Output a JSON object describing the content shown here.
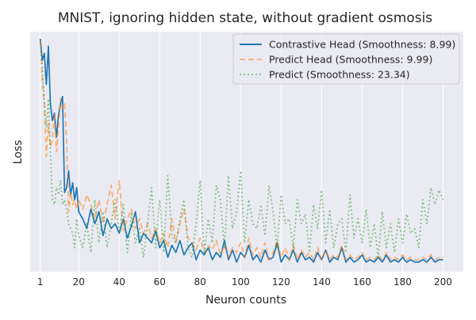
{
  "colors": {
    "background": "#ffffff",
    "plot_bg": "#eaeaf2",
    "grid": "#ffffff",
    "text": "#262626",
    "contrastive": "#1f77b4",
    "predict_head": "#ff7f0e",
    "predict": "#2ca02c"
  },
  "chart_data": {
    "type": "line",
    "title": "MNIST, ignoring hidden state, without gradient osmosis",
    "xlabel": "Neuron counts",
    "ylabel": "Loss",
    "xlim": [
      -4,
      210
    ],
    "ylim": [
      0,
      1.0
    ],
    "x_ticks": [
      1,
      20,
      40,
      60,
      80,
      100,
      120,
      140,
      160,
      180,
      200
    ],
    "y_ticks_shown": false,
    "grid": true,
    "legend_position": "top-right",
    "series": [
      {
        "name": "Contrastive Head (Smoothness: 8.99)",
        "color": "#1f77b4",
        "style": "solid",
        "opacity": 1.0,
        "x": [
          1,
          2,
          3,
          4,
          5,
          6,
          7,
          8,
          9,
          10,
          11,
          12,
          13,
          14,
          15,
          16,
          17,
          18,
          19,
          20,
          22,
          24,
          26,
          28,
          30,
          32,
          34,
          36,
          38,
          40,
          42,
          44,
          46,
          48,
          50,
          52,
          54,
          56,
          58,
          60,
          62,
          64,
          66,
          68,
          70,
          72,
          74,
          76,
          78,
          80,
          82,
          84,
          86,
          88,
          90,
          92,
          94,
          96,
          98,
          100,
          102,
          104,
          106,
          108,
          110,
          112,
          114,
          116,
          118,
          120,
          122,
          124,
          126,
          128,
          130,
          132,
          134,
          136,
          138,
          140,
          142,
          144,
          146,
          148,
          150,
          152,
          154,
          156,
          158,
          160,
          162,
          164,
          166,
          168,
          170,
          172,
          174,
          176,
          178,
          180,
          182,
          184,
          186,
          188,
          190,
          192,
          194,
          196,
          198,
          200
        ],
        "y": [
          0.97,
          0.88,
          0.91,
          0.78,
          0.94,
          0.7,
          0.63,
          0.66,
          0.56,
          0.65,
          0.7,
          0.73,
          0.33,
          0.35,
          0.42,
          0.32,
          0.37,
          0.3,
          0.35,
          0.25,
          0.22,
          0.18,
          0.26,
          0.2,
          0.25,
          0.15,
          0.22,
          0.18,
          0.2,
          0.16,
          0.22,
          0.14,
          0.19,
          0.25,
          0.12,
          0.16,
          0.14,
          0.12,
          0.17,
          0.1,
          0.13,
          0.06,
          0.11,
          0.08,
          0.13,
          0.07,
          0.1,
          0.12,
          0.05,
          0.09,
          0.07,
          0.1,
          0.05,
          0.08,
          0.06,
          0.13,
          0.05,
          0.09,
          0.04,
          0.08,
          0.06,
          0.11,
          0.05,
          0.07,
          0.04,
          0.09,
          0.05,
          0.06,
          0.12,
          0.04,
          0.07,
          0.05,
          0.09,
          0.04,
          0.08,
          0.05,
          0.06,
          0.04,
          0.08,
          0.05,
          0.09,
          0.04,
          0.06,
          0.05,
          0.1,
          0.04,
          0.06,
          0.04,
          0.05,
          0.07,
          0.04,
          0.05,
          0.04,
          0.06,
          0.04,
          0.07,
          0.04,
          0.05,
          0.04,
          0.06,
          0.04,
          0.05,
          0.04,
          0.04,
          0.05,
          0.04,
          0.06,
          0.04,
          0.05,
          0.05
        ]
      },
      {
        "name": "Predict Head (Smoothness: 9.99)",
        "color": "#ff7f0e",
        "style": "dashed",
        "opacity": 0.55,
        "x": [
          1,
          2,
          3,
          4,
          5,
          6,
          7,
          8,
          9,
          10,
          11,
          12,
          13,
          14,
          15,
          16,
          17,
          18,
          19,
          20,
          22,
          24,
          26,
          28,
          30,
          32,
          34,
          36,
          38,
          40,
          42,
          44,
          46,
          48,
          50,
          52,
          54,
          56,
          58,
          60,
          62,
          64,
          66,
          68,
          70,
          72,
          74,
          76,
          78,
          80,
          82,
          84,
          86,
          88,
          90,
          92,
          94,
          96,
          98,
          100,
          102,
          104,
          106,
          108,
          110,
          112,
          114,
          116,
          118,
          120,
          122,
          124,
          126,
          128,
          130,
          132,
          134,
          136,
          138,
          140,
          142,
          144,
          146,
          148,
          150,
          152,
          154,
          156,
          158,
          160,
          162,
          164,
          166,
          168,
          170,
          172,
          174,
          176,
          178,
          180,
          182,
          184,
          186,
          188,
          190,
          192,
          194,
          196,
          198,
          200
        ],
        "y": [
          0.96,
          0.8,
          0.7,
          0.48,
          0.62,
          0.52,
          0.55,
          0.66,
          0.5,
          0.6,
          0.72,
          0.68,
          0.7,
          0.55,
          0.25,
          0.33,
          0.28,
          0.3,
          0.26,
          0.3,
          0.26,
          0.32,
          0.28,
          0.22,
          0.3,
          0.2,
          0.28,
          0.36,
          0.22,
          0.38,
          0.17,
          0.22,
          0.26,
          0.18,
          0.22,
          0.16,
          0.2,
          0.14,
          0.18,
          0.12,
          0.16,
          0.1,
          0.22,
          0.12,
          0.2,
          0.26,
          0.14,
          0.12,
          0.09,
          0.14,
          0.08,
          0.11,
          0.09,
          0.13,
          0.07,
          0.11,
          0.06,
          0.1,
          0.08,
          0.12,
          0.06,
          0.14,
          0.07,
          0.1,
          0.06,
          0.12,
          0.05,
          0.08,
          0.13,
          0.06,
          0.1,
          0.05,
          0.11,
          0.05,
          0.09,
          0.06,
          0.08,
          0.05,
          0.1,
          0.05,
          0.09,
          0.05,
          0.07,
          0.06,
          0.11,
          0.05,
          0.07,
          0.05,
          0.06,
          0.08,
          0.05,
          0.06,
          0.05,
          0.07,
          0.05,
          0.08,
          0.05,
          0.06,
          0.05,
          0.07,
          0.05,
          0.06,
          0.05,
          0.05,
          0.06,
          0.05,
          0.07,
          0.05,
          0.06,
          0.06
        ]
      },
      {
        "name": "Predict (Smoothness: 23.34)",
        "color": "#2ca02c",
        "style": "dotted",
        "opacity": 0.55,
        "x": [
          1,
          2,
          3,
          4,
          5,
          6,
          7,
          8,
          9,
          10,
          11,
          12,
          13,
          14,
          15,
          16,
          17,
          18,
          19,
          20,
          22,
          24,
          26,
          28,
          30,
          32,
          34,
          36,
          38,
          40,
          42,
          44,
          46,
          48,
          50,
          52,
          54,
          56,
          58,
          60,
          62,
          64,
          66,
          68,
          70,
          72,
          74,
          76,
          78,
          80,
          82,
          84,
          86,
          88,
          90,
          92,
          94,
          96,
          98,
          100,
          102,
          104,
          106,
          108,
          110,
          112,
          114,
          116,
          118,
          120,
          122,
          124,
          126,
          128,
          130,
          132,
          134,
          136,
          138,
          140,
          142,
          144,
          146,
          148,
          150,
          152,
          154,
          156,
          158,
          160,
          162,
          164,
          166,
          168,
          170,
          172,
          174,
          176,
          178,
          180,
          182,
          184,
          186,
          188,
          190,
          192,
          194,
          196,
          198,
          200
        ],
        "y": [
          0.97,
          0.85,
          0.7,
          0.6,
          0.72,
          0.5,
          0.3,
          0.28,
          0.35,
          0.32,
          0.38,
          0.28,
          0.3,
          0.26,
          0.2,
          0.18,
          0.16,
          0.1,
          0.22,
          0.15,
          0.1,
          0.2,
          0.08,
          0.3,
          0.12,
          0.25,
          0.1,
          0.2,
          0.3,
          0.16,
          0.28,
          0.08,
          0.24,
          0.12,
          0.18,
          0.06,
          0.2,
          0.35,
          0.1,
          0.3,
          0.08,
          0.4,
          0.15,
          0.12,
          0.22,
          0.3,
          0.1,
          0.06,
          0.2,
          0.38,
          0.08,
          0.22,
          0.12,
          0.36,
          0.3,
          0.1,
          0.4,
          0.18,
          0.25,
          0.42,
          0.12,
          0.3,
          0.2,
          0.18,
          0.28,
          0.15,
          0.36,
          0.25,
          0.1,
          0.32,
          0.2,
          0.22,
          0.1,
          0.3,
          0.2,
          0.24,
          0.08,
          0.28,
          0.18,
          0.34,
          0.12,
          0.26,
          0.1,
          0.2,
          0.22,
          0.08,
          0.32,
          0.14,
          0.22,
          0.12,
          0.26,
          0.1,
          0.2,
          0.06,
          0.25,
          0.1,
          0.2,
          0.08,
          0.22,
          0.12,
          0.24,
          0.16,
          0.18,
          0.1,
          0.3,
          0.2,
          0.35,
          0.28,
          0.34,
          0.3
        ]
      }
    ]
  }
}
